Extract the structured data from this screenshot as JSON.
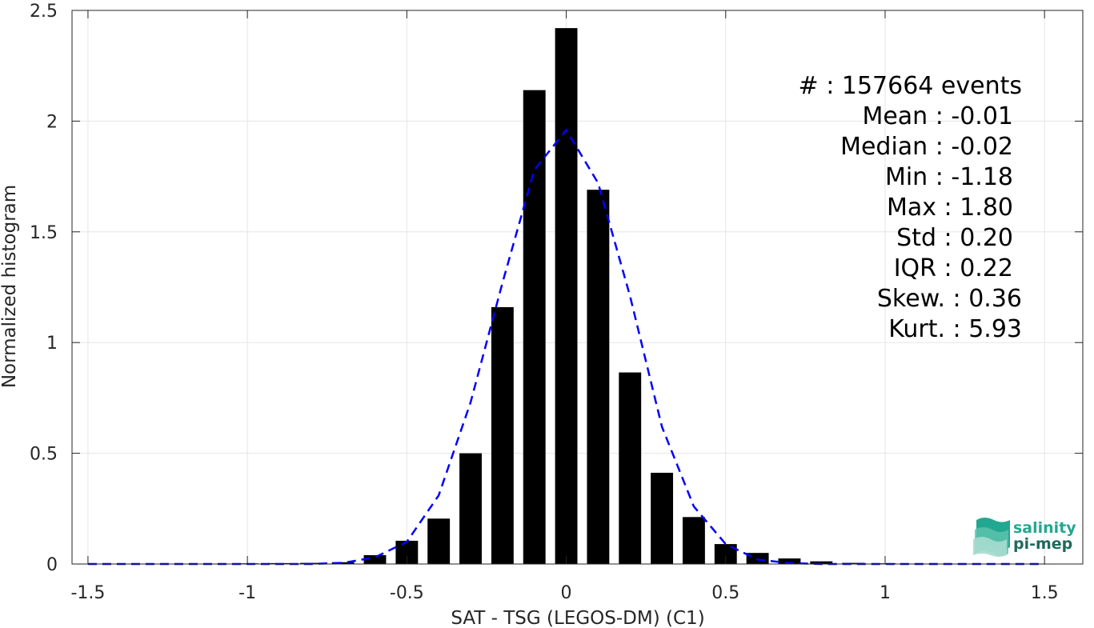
{
  "chart_data": {
    "type": "bar",
    "xlabel": "SAT - TSG (LEGOS-DM) (C1)",
    "ylabel": "Normalized histogram",
    "xlim": [
      -1.55,
      1.62
    ],
    "ylim": [
      0,
      2.5
    ],
    "grid": true,
    "xticks": [
      -1.5,
      -1,
      -0.5,
      0,
      0.5,
      1,
      1.5
    ],
    "xtick_labels": [
      "-1.5",
      "-1",
      "-0.5",
      "0",
      "0.5",
      "1",
      "1.5"
    ],
    "yticks": [
      0,
      0.5,
      1,
      1.5,
      2,
      2.5
    ],
    "ytick_labels": [
      "0",
      "0.5",
      "1",
      "1.5",
      "2",
      "2.5"
    ],
    "bar_width": 0.07,
    "series": [
      {
        "kind": "bar",
        "color": "#000000",
        "x": [
          -1.5,
          -1.4,
          -1.3,
          -1.2,
          -1.1,
          -1.0,
          -0.9,
          -0.8,
          -0.7,
          -0.6,
          -0.5,
          -0.4,
          -0.3,
          -0.2,
          -0.1,
          0.0,
          0.1,
          0.2,
          0.3,
          0.4,
          0.5,
          0.6,
          0.7,
          0.8,
          0.9,
          1.0,
          1.1,
          1.2,
          1.3,
          1.4,
          1.5
        ],
        "values": [
          0.001,
          0.001,
          0.001,
          0.001,
          0.001,
          0.003,
          0.004,
          0.005,
          0.008,
          0.04,
          0.105,
          0.205,
          0.5,
          1.16,
          2.14,
          2.42,
          1.69,
          0.865,
          0.412,
          0.212,
          0.09,
          0.05,
          0.025,
          0.012,
          0.005,
          0.003,
          0.002,
          0.001,
          0.001,
          0.001,
          0.001
        ]
      },
      {
        "kind": "line",
        "style": "dashed",
        "color": "#0000ff",
        "x": [
          -1.5,
          -1.4,
          -1.3,
          -1.2,
          -1.1,
          -1.0,
          -0.9,
          -0.8,
          -0.7,
          -0.6,
          -0.5,
          -0.4,
          -0.3,
          -0.2,
          -0.1,
          0.0,
          0.1,
          0.2,
          0.3,
          0.4,
          0.5,
          0.6,
          0.7,
          0.8,
          0.9,
          1.0,
          1.1,
          1.2,
          1.3,
          1.4,
          1.5
        ],
        "values": [
          0.0,
          0.0,
          0.0,
          0.0,
          0.0,
          0.0,
          0.0,
          0.0,
          0.005,
          0.03,
          0.1,
          0.31,
          0.73,
          1.27,
          1.78,
          1.96,
          1.72,
          1.21,
          0.62,
          0.26,
          0.09,
          0.02,
          0.004,
          0.0,
          0.0,
          0.0,
          0.0,
          0.0,
          0.0,
          0.0,
          0.0
        ]
      }
    ],
    "annotations": [
      "#  : 157664 events",
      "Mean : -0.01",
      "Median : -0.02",
      "Min : -1.18",
      "Max : 1.80",
      "Std : 0.20",
      "IQR : 0.22",
      "Skew. : 0.36",
      "Kurt. : 5.93"
    ]
  },
  "logo": {
    "line1": "salinity",
    "line2": "pi-mep"
  },
  "colors": {
    "axis": "#262626",
    "grid": "#e5e5e5",
    "bars": "#000000",
    "fit_line": "#0000ff",
    "logo_teal": "#22a890",
    "logo_dark": "#1f6a5c"
  }
}
